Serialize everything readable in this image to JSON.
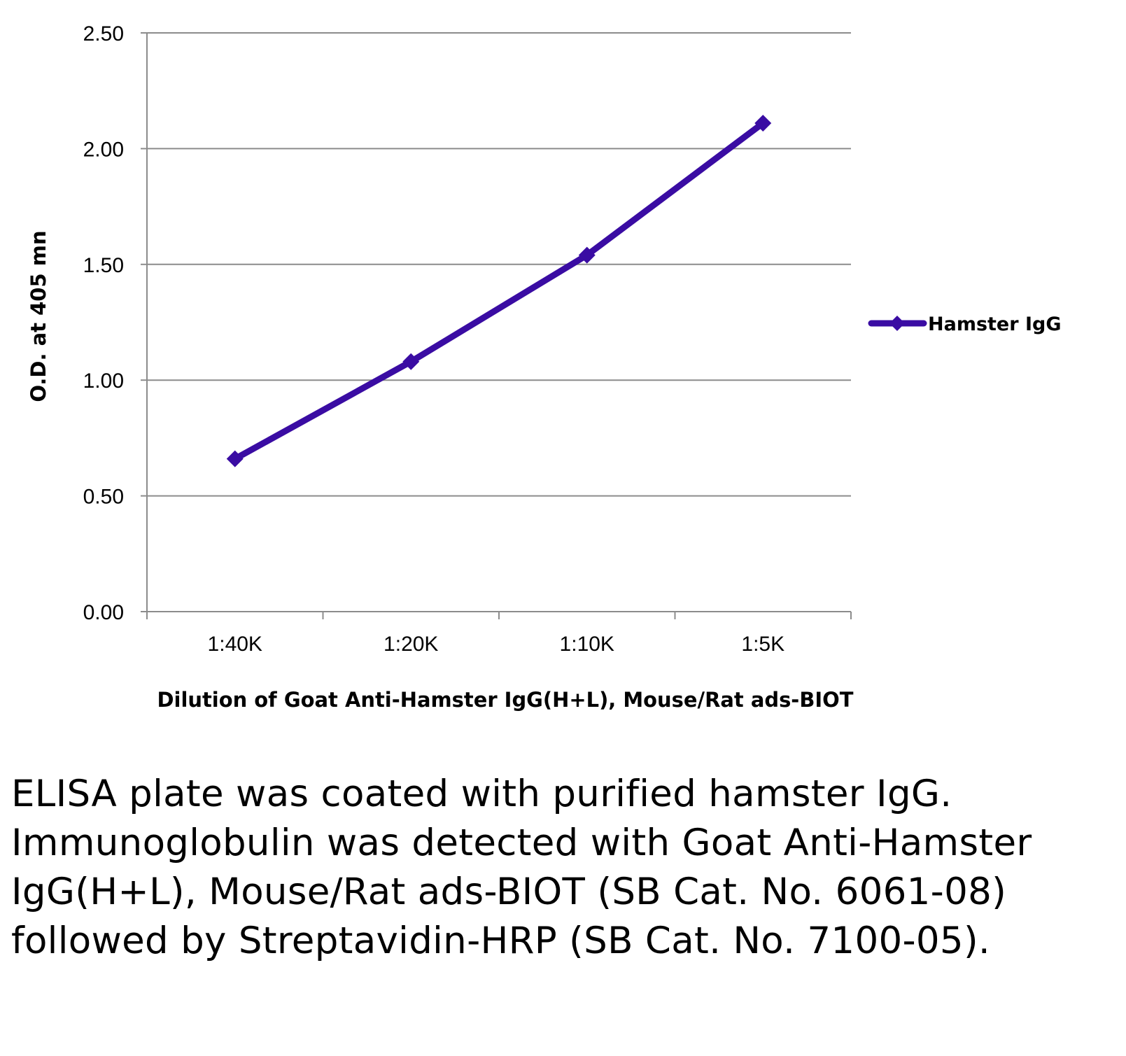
{
  "chart_data": {
    "type": "line",
    "categories": [
      "1:40K",
      "1:20K",
      "1:10K",
      "1:5K"
    ],
    "series": [
      {
        "name": "Hamster IgG",
        "values": [
          0.66,
          1.08,
          1.54,
          2.11
        ],
        "color": "#3a0ca3"
      }
    ],
    "yticks": [
      "0.00",
      "0.50",
      "1.00",
      "1.50",
      "2.00",
      "2.50"
    ],
    "ylim": [
      0,
      2.5
    ],
    "ylabel": "O.D. at 405 mn",
    "xlabel": "Dilution of Goat Anti-Hamster IgG(H+L), Mouse/Rat ads-BIOT",
    "grid": true,
    "legend_position": "right"
  },
  "caption": "ELISA plate was coated with purified hamster IgG.  Immunoglobulin was detected with Goat Anti-Hamster IgG(H+L), Mouse/Rat ads-BIOT (SB Cat. No. 6061-08) followed by Streptavidin-HRP (SB Cat. No. 7100-05)."
}
